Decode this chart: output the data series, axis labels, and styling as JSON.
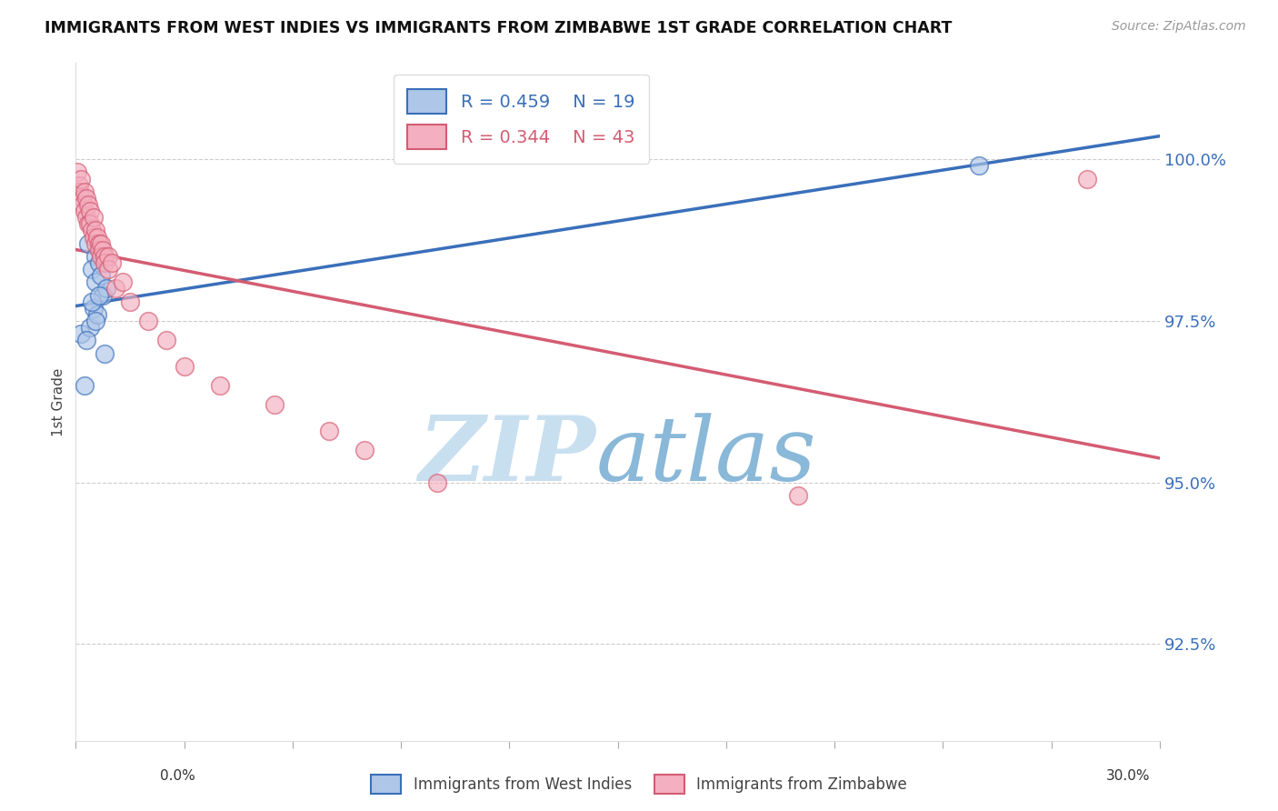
{
  "title": "IMMIGRANTS FROM WEST INDIES VS IMMIGRANTS FROM ZIMBABWE 1ST GRADE CORRELATION CHART",
  "source": "Source: ZipAtlas.com",
  "ylabel": "1st Grade",
  "xlim": [
    0.0,
    30.0
  ],
  "ylim": [
    91.0,
    101.5
  ],
  "yticks": [
    92.5,
    95.0,
    97.5,
    100.0
  ],
  "ytick_labels": [
    "92.5%",
    "95.0%",
    "97.5%",
    "100.0%"
  ],
  "legend_blue_label": "R = 0.459    N = 19",
  "legend_pink_label": "R = 0.344    N = 43",
  "blue_color": "#aec6e8",
  "pink_color": "#f4afc0",
  "blue_line_color": "#3a6fba",
  "pink_line_color": "#d45c72",
  "blue_scatter": {
    "x": [
      0.15,
      0.35,
      0.55,
      0.45,
      0.65,
      0.55,
      0.7,
      0.75,
      0.85,
      0.5,
      0.4,
      0.6,
      0.3,
      0.45,
      0.55,
      0.65,
      0.25,
      0.8,
      25.0
    ],
    "y": [
      97.3,
      98.7,
      98.5,
      98.3,
      98.4,
      98.1,
      98.2,
      97.9,
      98.0,
      97.7,
      97.4,
      97.6,
      97.2,
      97.8,
      97.5,
      97.9,
      96.5,
      97.0,
      99.9
    ]
  },
  "pink_scatter": {
    "x": [
      0.05,
      0.1,
      0.1,
      0.15,
      0.2,
      0.2,
      0.25,
      0.25,
      0.3,
      0.3,
      0.35,
      0.35,
      0.4,
      0.4,
      0.45,
      0.5,
      0.5,
      0.55,
      0.55,
      0.6,
      0.65,
      0.65,
      0.7,
      0.7,
      0.75,
      0.8,
      0.8,
      0.9,
      0.9,
      1.0,
      1.1,
      1.3,
      1.5,
      2.0,
      2.5,
      3.0,
      4.0,
      5.5,
      7.0,
      8.0,
      10.0,
      20.0,
      28.0
    ],
    "y": [
      99.8,
      99.6,
      99.5,
      99.7,
      99.4,
      99.3,
      99.5,
      99.2,
      99.4,
      99.1,
      99.3,
      99.0,
      99.2,
      99.0,
      98.9,
      99.1,
      98.8,
      98.9,
      98.7,
      98.8,
      98.7,
      98.6,
      98.7,
      98.5,
      98.6,
      98.5,
      98.4,
      98.5,
      98.3,
      98.4,
      98.0,
      98.1,
      97.8,
      97.5,
      97.2,
      96.8,
      96.5,
      96.2,
      95.8,
      95.5,
      95.0,
      94.8,
      99.7
    ]
  },
  "watermark_zip": "ZIP",
  "watermark_atlas": "atlas",
  "watermark_color_zip": "#c8dff0",
  "watermark_color_atlas": "#8ab8d8",
  "background_color": "#ffffff",
  "grid_color": "#cccccc"
}
